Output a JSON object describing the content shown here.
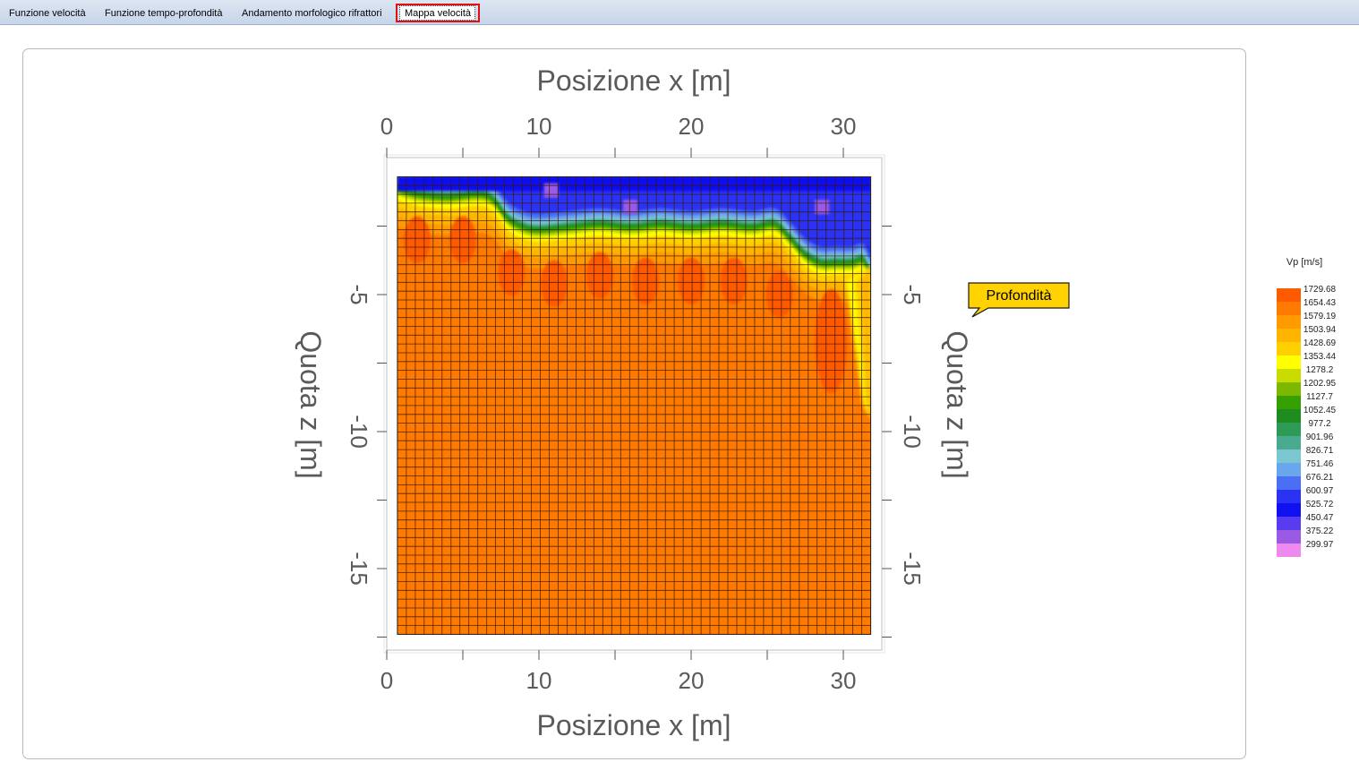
{
  "tabs": [
    {
      "label": "Funzione velocità"
    },
    {
      "label": "Funzione tempo-profondità"
    },
    {
      "label": "Andamento morfologico rifrattori"
    },
    {
      "label": "Mappa velocità",
      "active": true
    }
  ],
  "callout": {
    "label": "Profondità",
    "color": "#ffd200"
  },
  "chart_data": {
    "type": "heatmap",
    "x_axis_label": "Posizione x [m]",
    "y_axis_label": "Quota z [m]",
    "xlim": [
      0,
      32.5
    ],
    "ylim": [
      -18,
      0
    ],
    "x_ticks": [
      0,
      10,
      20,
      30
    ],
    "y_ticks": [
      -5,
      -10,
      -15
    ],
    "data_extent_x": [
      0.7,
      31.8
    ],
    "data_extent_z": [
      -17.4,
      -0.7
    ],
    "grid_columns": 53,
    "grid_rows": 52,
    "legend": {
      "title": "Vp [m/s]",
      "levels": [
        {
          "value": "1729.68",
          "color": "#ff5a00"
        },
        {
          "value": "1654.43",
          "color": "#ff7a00"
        },
        {
          "value": "1579.19",
          "color": "#ff9a00"
        },
        {
          "value": "1503.94",
          "color": "#ffb400"
        },
        {
          "value": "1428.69",
          "color": "#ffd000"
        },
        {
          "value": "1353.44",
          "color": "#ffff00"
        },
        {
          "value": "1278.2",
          "color": "#c8dc00"
        },
        {
          "value": "1202.95",
          "color": "#7cb800"
        },
        {
          "value": "1127.7",
          "color": "#36a000"
        },
        {
          "value": "1052.45",
          "color": "#1e8c1e"
        },
        {
          "value": "977.2",
          "color": "#2e9a55"
        },
        {
          "value": "901.96",
          "color": "#4aaa90"
        },
        {
          "value": "826.71",
          "color": "#7cc6d2"
        },
        {
          "value": "751.46",
          "color": "#6aa6ee"
        },
        {
          "value": "676.21",
          "color": "#4a6ef4"
        },
        {
          "value": "600.97",
          "color": "#2a32f4"
        },
        {
          "value": "525.72",
          "color": "#1010f0"
        },
        {
          "value": "450.47",
          "color": "#5a3cf0"
        },
        {
          "value": "375.22",
          "color": "#9a5ae6"
        },
        {
          "value": "299.97",
          "color": "#ee8aee"
        }
      ]
    },
    "refractor_interface": {
      "x": [
        0.7,
        2,
        4,
        6,
        7,
        8,
        9,
        10,
        12,
        14,
        16,
        18,
        20,
        22,
        24,
        25.5,
        26.5,
        27.5,
        28.5,
        29.5,
        30.5,
        31.3,
        31.8
      ],
      "z": [
        -1.1,
        -1.3,
        -1.4,
        -1.3,
        -1.5,
        -2.2,
        -2.5,
        -2.6,
        -2.5,
        -2.4,
        -2.5,
        -2.4,
        -2.5,
        -2.4,
        -2.5,
        -2.4,
        -2.9,
        -3.5,
        -3.8,
        -3.8,
        -3.8,
        -3.7,
        -4.2
      ]
    },
    "low_velocity_zones": [
      {
        "x": 2.0,
        "z": -3.0
      },
      {
        "x": 5.0,
        "z": -3.0
      },
      {
        "x": 8.2,
        "z": -4.2
      },
      {
        "x": 11.0,
        "z": -4.6
      },
      {
        "x": 14.0,
        "z": -4.3
      },
      {
        "x": 17.0,
        "z": -4.5
      },
      {
        "x": 20.0,
        "z": -4.5
      },
      {
        "x": 22.8,
        "z": -4.5
      },
      {
        "x": 25.8,
        "z": -5.0
      },
      {
        "x": 29.2,
        "z": -6.7
      }
    ],
    "slow_pockets": [
      {
        "x": 10.8,
        "z": -1.2
      },
      {
        "x": 16.0,
        "z": -1.8
      },
      {
        "x": 28.6,
        "z": -1.8
      }
    ]
  }
}
